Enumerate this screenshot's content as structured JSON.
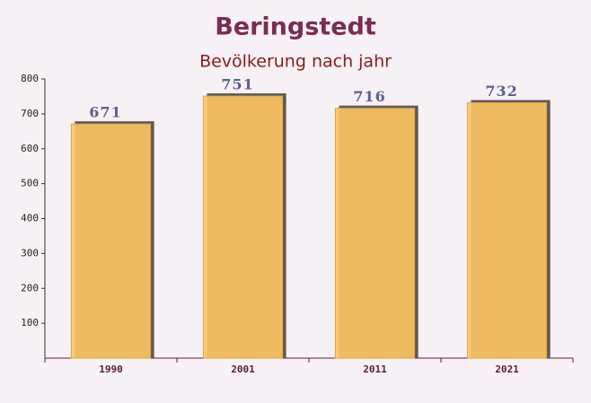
{
  "chart_data": {
    "type": "bar",
    "title": "Beringstedt",
    "subtitle": "Bevölkerung nach jahr",
    "categories": [
      "1990",
      "2001",
      "2011",
      "2021"
    ],
    "values": [
      671,
      751,
      716,
      732
    ],
    "color": "#ffc561",
    "ylim": [
      0,
      800
    ],
    "yticks": [
      100,
      200,
      300,
      400,
      500,
      600,
      700,
      800
    ],
    "grid": false
  }
}
